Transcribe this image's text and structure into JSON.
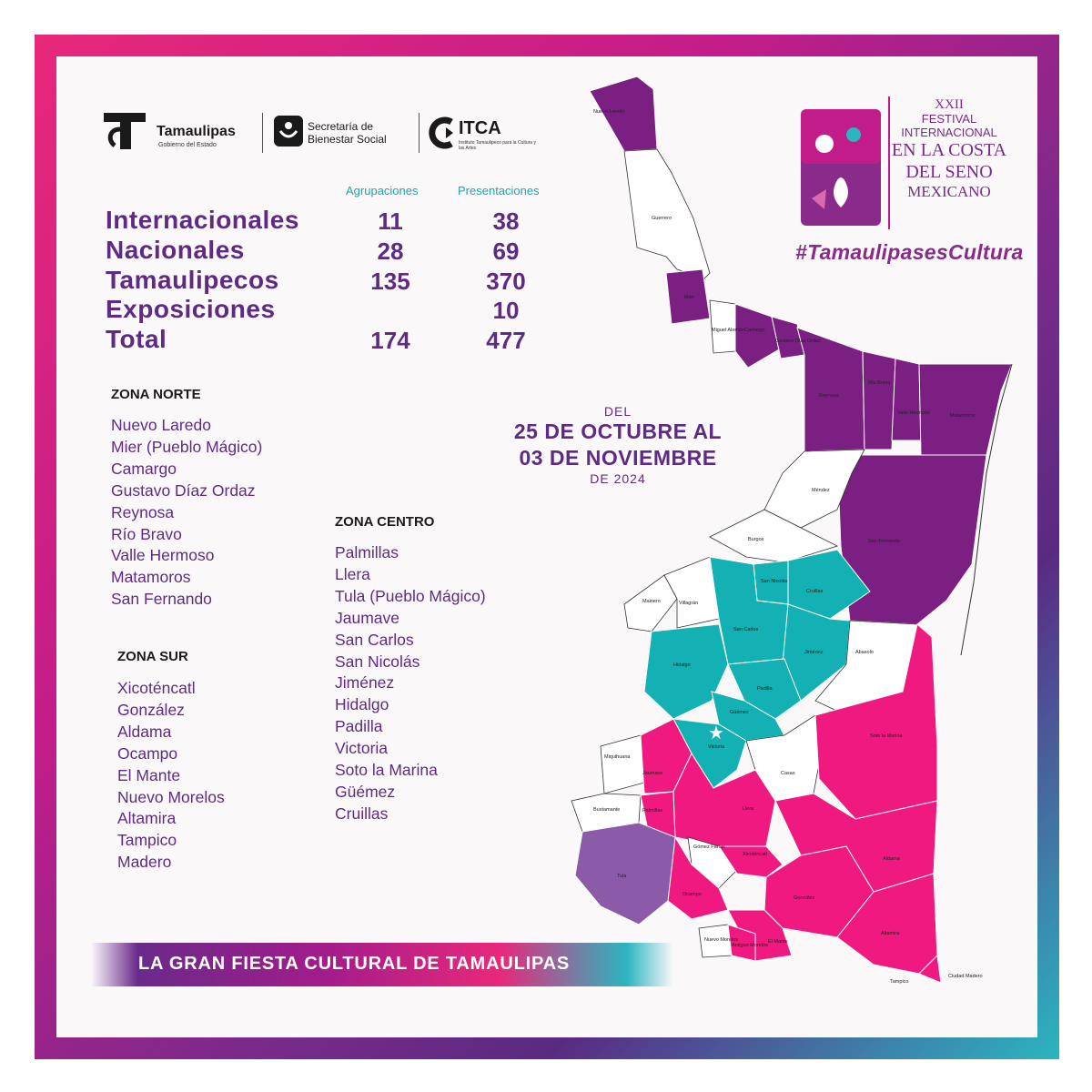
{
  "logos": {
    "tamaulipas": {
      "name": "Tamaulipas",
      "sub": "Gobierno del Estado"
    },
    "bienestar": {
      "name": "Secretaría de Bienestar Social"
    },
    "itca": {
      "name": "ITCA",
      "sub": "Instituto Tamaulipeco para la Cultura y las Artes"
    }
  },
  "stats": {
    "headers": {
      "groups": "Agrupaciones",
      "presentations": "Presentaciones"
    },
    "rows": [
      {
        "label": "Internacionales",
        "groups": "11",
        "presentations": "38"
      },
      {
        "label": "Nacionales",
        "groups": "28",
        "presentations": "69"
      },
      {
        "label": "Tamaulipecos",
        "groups": "135",
        "presentations": "370"
      },
      {
        "label": "Exposiciones",
        "groups": "",
        "presentations": "10"
      },
      {
        "label": "Total",
        "groups": "174",
        "presentations": "477"
      }
    ]
  },
  "zones": {
    "norte": {
      "title": "ZONA NORTE",
      "items": [
        "Nuevo Laredo",
        "Mier (Pueblo Mágico)",
        "Camargo",
        "Gustavo Díaz Ordaz",
        "Reynosa",
        "Río Bravo",
        "Valle Hermoso",
        "Matamoros",
        "San Fernando"
      ]
    },
    "centro": {
      "title": "ZONA CENTRO",
      "items": [
        "Palmillas",
        "Llera",
        "Tula (Pueblo Mágico)",
        "Jaumave",
        "San Carlos",
        "San Nicolás",
        "Jiménez",
        "Hidalgo",
        "Padilla",
        "Victoria",
        "Soto la Marina",
        "Güémez",
        "Cruillas"
      ]
    },
    "sur": {
      "title": "ZONA SUR",
      "items": [
        "Xicoténcatl",
        "González",
        "Aldama",
        "Ocampo",
        "El Mante",
        "Nuevo  Morelos",
        "Altamira",
        "Tampico",
        "Madero"
      ]
    }
  },
  "dates": {
    "prefix": "DEL",
    "line1": "25 DE OCTUBRE AL",
    "line2": "03 DE NOVIEMBRE",
    "suffix": "DE 2024"
  },
  "festival": {
    "edition": "XXII",
    "line1": "FESTIVAL",
    "line2": "INTERNACIONAL",
    "line3": "EN LA COSTA",
    "line4": "DEL SENO",
    "line5": "MEXICANO"
  },
  "hashtag": "#TamaulipasesCultura",
  "banner": "LA GRAN FIESTA CULTURAL DE TAMAULIPAS",
  "map_labels": {
    "nuevo_laredo": "Nuevo Laredo",
    "guerrero": "Guerrero",
    "mier": "Mier",
    "miguel_aleman": "Miguel Alemán",
    "camargo": "Camargo",
    "diaz_ordaz": "Gustavo Díaz Ordaz",
    "reynosa": "Reynosa",
    "rio_bravo": "Río Bravo",
    "valle_hermoso": "Valle Hermoso",
    "matamoros": "Matamoros",
    "mendez": "Méndez",
    "burgos": "Burgos",
    "san_fernando": "San Fernando",
    "mainero": "Mainero",
    "villagran": "Villagrán",
    "san_nicolas": "San Nicolás",
    "cruillas": "Cruillas",
    "san_carlos": "San Carlos",
    "hidalgo": "Hidalgo",
    "jimenez": "Jiménez",
    "abasolo": "Abasolo",
    "padilla": "Padilla",
    "guemez": "Güémez",
    "victoria": "Victoria",
    "soto_la_marina": "Soto la Marina",
    "miquihuana": "Miquihuana",
    "casas": "Casas",
    "jaumave": "Jaumave",
    "bustamante": "Bustamante",
    "palmillas": "Palmillas",
    "llera": "Llera",
    "gomez_farias": "Gómez Farías",
    "xicotencatl": "Xicoténcatl",
    "tula": "Tula",
    "aldama": "Aldama",
    "ocampo": "Ocampo",
    "gonzalez": "González",
    "el_mante": "El Mante",
    "altamira": "Altamira",
    "nuevo_morelos": "Nuevo Morelos",
    "antiguo_morelos": "Antiguo Morelos",
    "tampico": "Tampico",
    "ciudad_madero": "Ciudad Madero"
  },
  "colors": {
    "norte": "#7b1f82",
    "centro": "#13b1b3",
    "sur": "#f0197f",
    "tula": "#8b5aa8",
    "text": "#5f2a84",
    "accent": "#1aa5b0"
  }
}
